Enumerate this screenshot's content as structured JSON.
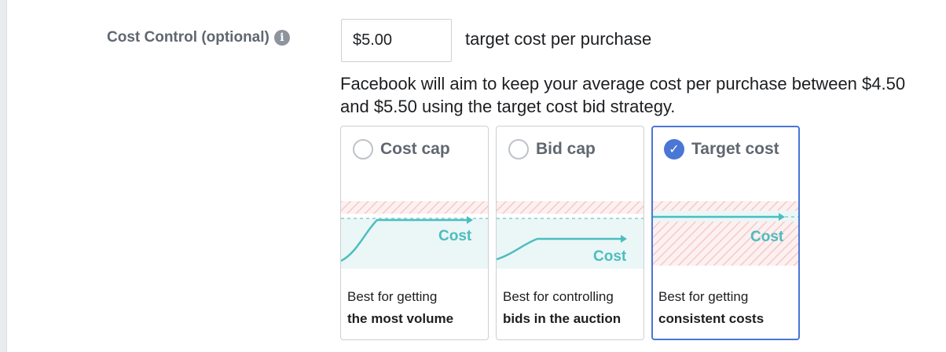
{
  "cost_control": {
    "label": "Cost Control (optional)",
    "info_icon": "i",
    "value": "$5.00",
    "suffix": "target cost per purchase"
  },
  "description": "Facebook will aim to keep your average cost per purchase between $4.50 and $5.50 using the target cost bid strategy.",
  "options": [
    {
      "title": "Cost cap",
      "chart_label": "Cost",
      "desc_line1": "Best for getting",
      "desc_line2": "the most volume",
      "selected": false
    },
    {
      "title": "Bid cap",
      "chart_label": "Cost",
      "desc_line1": "Best for controlling",
      "desc_line2": "bids in the auction",
      "selected": false
    },
    {
      "title": "Target cost",
      "chart_label": "Cost",
      "desc_line1": "Best for getting",
      "desc_line2": "consistent costs",
      "selected": true
    }
  ],
  "colors": {
    "accent": "#4a76d6",
    "teal": "#4dbdbf",
    "teal_fill": "#eaf7f6",
    "hatch": "#f9d3d3"
  },
  "icons": {
    "info": "info-icon",
    "radio": "radio-icon",
    "check": "check-icon"
  }
}
